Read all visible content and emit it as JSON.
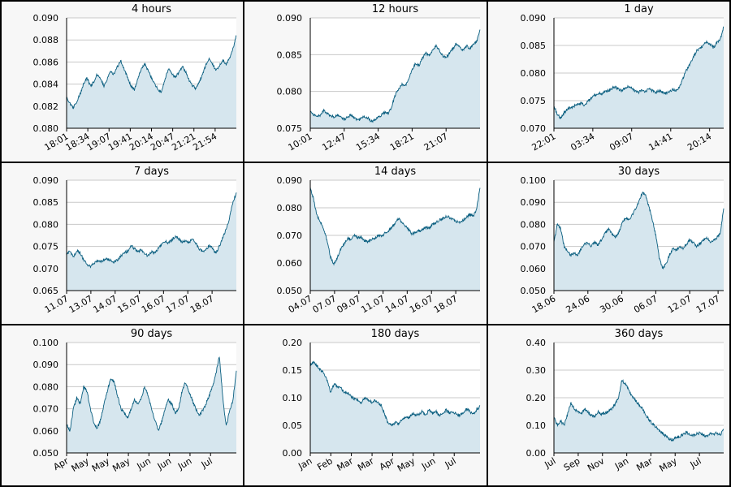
{
  "colors": {
    "line": "#0b5f80",
    "fill": "#d6e6ee",
    "grid": "#c8c8c8",
    "border": "#000000",
    "plot_bg": "#ffffff",
    "panel_bg": "#f7f7f7"
  },
  "chart_data": [
    {
      "type": "area",
      "title": "4 hours",
      "y_ticks": [
        "0.080",
        "0.082",
        "0.084",
        "0.086",
        "0.088",
        "0.090"
      ],
      "ylim": [
        0.08,
        0.09
      ],
      "x_ticks": [
        "18:01",
        "18:34",
        "19:07",
        "19:41",
        "20:14",
        "20:47",
        "21:21",
        "21:54"
      ],
      "x_tick_pos": [
        0,
        0.125,
        0.25,
        0.375,
        0.5,
        0.625,
        0.75,
        0.875
      ],
      "series": [
        {
          "values": [
            0.0828,
            0.0822,
            0.0819,
            0.0824,
            0.0831,
            0.084,
            0.0846,
            0.0838,
            0.0842,
            0.0849,
            0.0845,
            0.0838,
            0.0845,
            0.0851,
            0.0849,
            0.0856,
            0.0861,
            0.0853,
            0.0846,
            0.0838,
            0.0835,
            0.0845,
            0.0853,
            0.0858,
            0.0852,
            0.0846,
            0.084,
            0.0835,
            0.0833,
            0.0844,
            0.0854,
            0.0849,
            0.0846,
            0.085,
            0.0856,
            0.0852,
            0.0844,
            0.0839,
            0.0836,
            0.0842,
            0.0848,
            0.0857,
            0.0863,
            0.0858,
            0.0852,
            0.0856,
            0.0862,
            0.0858,
            0.0863,
            0.0872,
            0.0884
          ]
        }
      ]
    },
    {
      "type": "area",
      "title": "12 hours",
      "y_ticks": [
        "0.075",
        "0.080",
        "0.085",
        "0.090"
      ],
      "ylim": [
        0.075,
        0.09
      ],
      "x_ticks": [
        "10:01",
        "12:47",
        "15:34",
        "18:21",
        "21:07"
      ],
      "x_tick_pos": [
        0,
        0.2,
        0.4,
        0.6,
        0.8
      ],
      "series": [
        {
          "values": [
            0.0772,
            0.0769,
            0.0765,
            0.0768,
            0.0774,
            0.077,
            0.0767,
            0.0765,
            0.0768,
            0.0766,
            0.0762,
            0.0765,
            0.0768,
            0.0764,
            0.0761,
            0.0763,
            0.0766,
            0.0764,
            0.0759,
            0.0762,
            0.0765,
            0.0768,
            0.0772,
            0.077,
            0.078,
            0.0795,
            0.0803,
            0.081,
            0.0808,
            0.0818,
            0.083,
            0.0838,
            0.0835,
            0.0845,
            0.0852,
            0.0848,
            0.0855,
            0.0862,
            0.0856,
            0.0848,
            0.0845,
            0.0852,
            0.0858,
            0.0865,
            0.0861,
            0.0856,
            0.0862,
            0.0858,
            0.0864,
            0.0867,
            0.0884
          ]
        }
      ]
    },
    {
      "type": "area",
      "title": "1 day",
      "y_ticks": [
        "0.070",
        "0.075",
        "0.080",
        "0.085",
        "0.090"
      ],
      "ylim": [
        0.07,
        0.09
      ],
      "x_ticks": [
        "22:01",
        "03:34",
        "09:07",
        "14:41",
        "20:14"
      ],
      "x_tick_pos": [
        0,
        0.229,
        0.458,
        0.688,
        0.917
      ],
      "series": [
        {
          "values": [
            0.074,
            0.0725,
            0.0718,
            0.0728,
            0.0735,
            0.0738,
            0.074,
            0.0743,
            0.0745,
            0.0742,
            0.0748,
            0.0755,
            0.076,
            0.0763,
            0.0762,
            0.0766,
            0.0768,
            0.0772,
            0.0775,
            0.0771,
            0.0768,
            0.0773,
            0.0776,
            0.0772,
            0.0768,
            0.0765,
            0.0769,
            0.0766,
            0.0772,
            0.0768,
            0.0764,
            0.0768,
            0.0765,
            0.0763,
            0.0767,
            0.077,
            0.0768,
            0.0775,
            0.079,
            0.0805,
            0.0815,
            0.0828,
            0.084,
            0.0845,
            0.085,
            0.0858,
            0.0852,
            0.0846,
            0.0855,
            0.0862,
            0.0884
          ]
        }
      ]
    },
    {
      "type": "area",
      "title": "7 days",
      "y_ticks": [
        "0.065",
        "0.070",
        "0.075",
        "0.080",
        "0.085",
        "0.090"
      ],
      "ylim": [
        0.065,
        0.09
      ],
      "x_ticks": [
        "11.07",
        "13.07",
        "14.07",
        "15.07",
        "16.07",
        "17.07",
        "18.07"
      ],
      "x_tick_pos": [
        0,
        0.143,
        0.286,
        0.429,
        0.571,
        0.714,
        0.857
      ],
      "series": [
        {
          "values": [
            0.073,
            0.074,
            0.0725,
            0.0742,
            0.0735,
            0.072,
            0.071,
            0.0705,
            0.0712,
            0.0718,
            0.0715,
            0.072,
            0.0722,
            0.0718,
            0.0715,
            0.072,
            0.0728,
            0.0735,
            0.074,
            0.0752,
            0.0745,
            0.0738,
            0.0742,
            0.0735,
            0.0728,
            0.0738,
            0.0735,
            0.0745,
            0.0755,
            0.0762,
            0.0758,
            0.0765,
            0.0772,
            0.0768,
            0.076,
            0.0762,
            0.0758,
            0.0768,
            0.0758,
            0.0745,
            0.0738,
            0.0742,
            0.0752,
            0.0745,
            0.0735,
            0.075,
            0.077,
            0.079,
            0.0815,
            0.085,
            0.0872
          ]
        }
      ]
    },
    {
      "type": "area",
      "title": "14 days",
      "y_ticks": [
        "0.050",
        "0.060",
        "0.070",
        "0.080",
        "0.090"
      ],
      "ylim": [
        0.05,
        0.09
      ],
      "x_ticks": [
        "04.07",
        "07.07",
        "09.07",
        "11.07",
        "14.07",
        "16.07",
        "18.07"
      ],
      "x_tick_pos": [
        0,
        0.143,
        0.286,
        0.429,
        0.571,
        0.714,
        0.857
      ],
      "series": [
        {
          "values": [
            0.0875,
            0.083,
            0.077,
            0.075,
            0.072,
            0.068,
            0.062,
            0.0595,
            0.062,
            0.065,
            0.067,
            0.069,
            0.0685,
            0.07,
            0.069,
            0.0695,
            0.068,
            0.0675,
            0.0685,
            0.069,
            0.07,
            0.0695,
            0.071,
            0.0715,
            0.073,
            0.0745,
            0.076,
            0.075,
            0.0735,
            0.072,
            0.0705,
            0.071,
            0.0715,
            0.072,
            0.073,
            0.0725,
            0.074,
            0.0745,
            0.0755,
            0.076,
            0.077,
            0.0765,
            0.076,
            0.075,
            0.0745,
            0.0755,
            0.0765,
            0.0775,
            0.077,
            0.0795,
            0.0872
          ]
        }
      ]
    },
    {
      "type": "area",
      "title": "30 days",
      "y_ticks": [
        "0.050",
        "0.060",
        "0.070",
        "0.080",
        "0.090",
        "0.100"
      ],
      "ylim": [
        0.05,
        0.1
      ],
      "x_ticks": [
        "18.06",
        "24.06",
        "30.06",
        "06.07",
        "12.07",
        "17.07"
      ],
      "x_tick_pos": [
        0,
        0.2,
        0.4,
        0.6,
        0.8,
        0.967
      ],
      "series": [
        {
          "values": [
            0.072,
            0.08,
            0.078,
            0.07,
            0.068,
            0.066,
            0.067,
            0.066,
            0.069,
            0.071,
            0.0715,
            0.07,
            0.072,
            0.0705,
            0.073,
            0.076,
            0.078,
            0.076,
            0.074,
            0.076,
            0.08,
            0.083,
            0.082,
            0.084,
            0.087,
            0.09,
            0.0945,
            0.093,
            0.088,
            0.082,
            0.075,
            0.065,
            0.06,
            0.062,
            0.066,
            0.069,
            0.068,
            0.07,
            0.069,
            0.071,
            0.073,
            0.072,
            0.07,
            0.071,
            0.073,
            0.074,
            0.072,
            0.073,
            0.074,
            0.076,
            0.0872
          ]
        }
      ]
    },
    {
      "type": "area",
      "title": "90 days",
      "y_ticks": [
        "0.050",
        "0.060",
        "0.070",
        "0.080",
        "0.090",
        "0.100"
      ],
      "ylim": [
        0.05,
        0.1
      ],
      "x_ticks": [
        "Apr",
        "May",
        "May",
        "May",
        "Jun",
        "Jun",
        "Jun",
        "Jul"
      ],
      "x_tick_pos": [
        0,
        0.121,
        0.242,
        0.364,
        0.485,
        0.606,
        0.727,
        0.848
      ],
      "series": [
        {
          "values": [
            0.063,
            0.06,
            0.07,
            0.075,
            0.072,
            0.08,
            0.078,
            0.07,
            0.064,
            0.061,
            0.065,
            0.072,
            0.078,
            0.084,
            0.082,
            0.076,
            0.07,
            0.068,
            0.066,
            0.07,
            0.074,
            0.072,
            0.075,
            0.08,
            0.076,
            0.07,
            0.065,
            0.06,
            0.064,
            0.07,
            0.074,
            0.072,
            0.068,
            0.07,
            0.078,
            0.082,
            0.078,
            0.074,
            0.07,
            0.067,
            0.069,
            0.072,
            0.076,
            0.08,
            0.086,
            0.094,
            0.075,
            0.062,
            0.069,
            0.074,
            0.0872
          ]
        }
      ]
    },
    {
      "type": "area",
      "title": "180 days",
      "y_ticks": [
        "0.00",
        "0.05",
        "0.10",
        "0.15",
        "0.20"
      ],
      "ylim": [
        0.0,
        0.2
      ],
      "x_ticks": [
        "Jan",
        "Feb",
        "Mar",
        "Mar",
        "Apr",
        "May",
        "Jun",
        "Jul"
      ],
      "x_tick_pos": [
        0,
        0.121,
        0.242,
        0.364,
        0.485,
        0.606,
        0.727,
        0.848
      ],
      "series": [
        {
          "values": [
            0.16,
            0.165,
            0.158,
            0.15,
            0.145,
            0.13,
            0.11,
            0.125,
            0.12,
            0.118,
            0.11,
            0.108,
            0.102,
            0.098,
            0.095,
            0.09,
            0.1,
            0.096,
            0.092,
            0.095,
            0.09,
            0.085,
            0.068,
            0.052,
            0.05,
            0.055,
            0.052,
            0.06,
            0.065,
            0.062,
            0.072,
            0.068,
            0.07,
            0.075,
            0.068,
            0.078,
            0.072,
            0.075,
            0.068,
            0.07,
            0.078,
            0.072,
            0.075,
            0.07,
            0.068,
            0.072,
            0.08,
            0.075,
            0.07,
            0.078,
            0.085
          ]
        }
      ]
    },
    {
      "type": "area",
      "title": "360 days",
      "y_ticks": [
        "0.00",
        "0.10",
        "0.20",
        "0.30",
        "0.40"
      ],
      "ylim": [
        0.0,
        0.4
      ],
      "x_ticks": [
        "Jul",
        "Sep",
        "Nov",
        "Jan",
        "Mar",
        "May",
        "Jul"
      ],
      "x_tick_pos": [
        0,
        0.143,
        0.286,
        0.429,
        0.571,
        0.714,
        0.857
      ],
      "series": [
        {
          "values": [
            0.13,
            0.1,
            0.115,
            0.1,
            0.14,
            0.18,
            0.16,
            0.15,
            0.14,
            0.16,
            0.15,
            0.135,
            0.13,
            0.15,
            0.14,
            0.145,
            0.15,
            0.16,
            0.175,
            0.2,
            0.265,
            0.25,
            0.23,
            0.205,
            0.19,
            0.175,
            0.16,
            0.14,
            0.12,
            0.105,
            0.095,
            0.08,
            0.07,
            0.06,
            0.05,
            0.048,
            0.055,
            0.06,
            0.065,
            0.075,
            0.068,
            0.062,
            0.07,
            0.072,
            0.065,
            0.06,
            0.07,
            0.068,
            0.072,
            0.066,
            0.085
          ]
        }
      ]
    }
  ]
}
